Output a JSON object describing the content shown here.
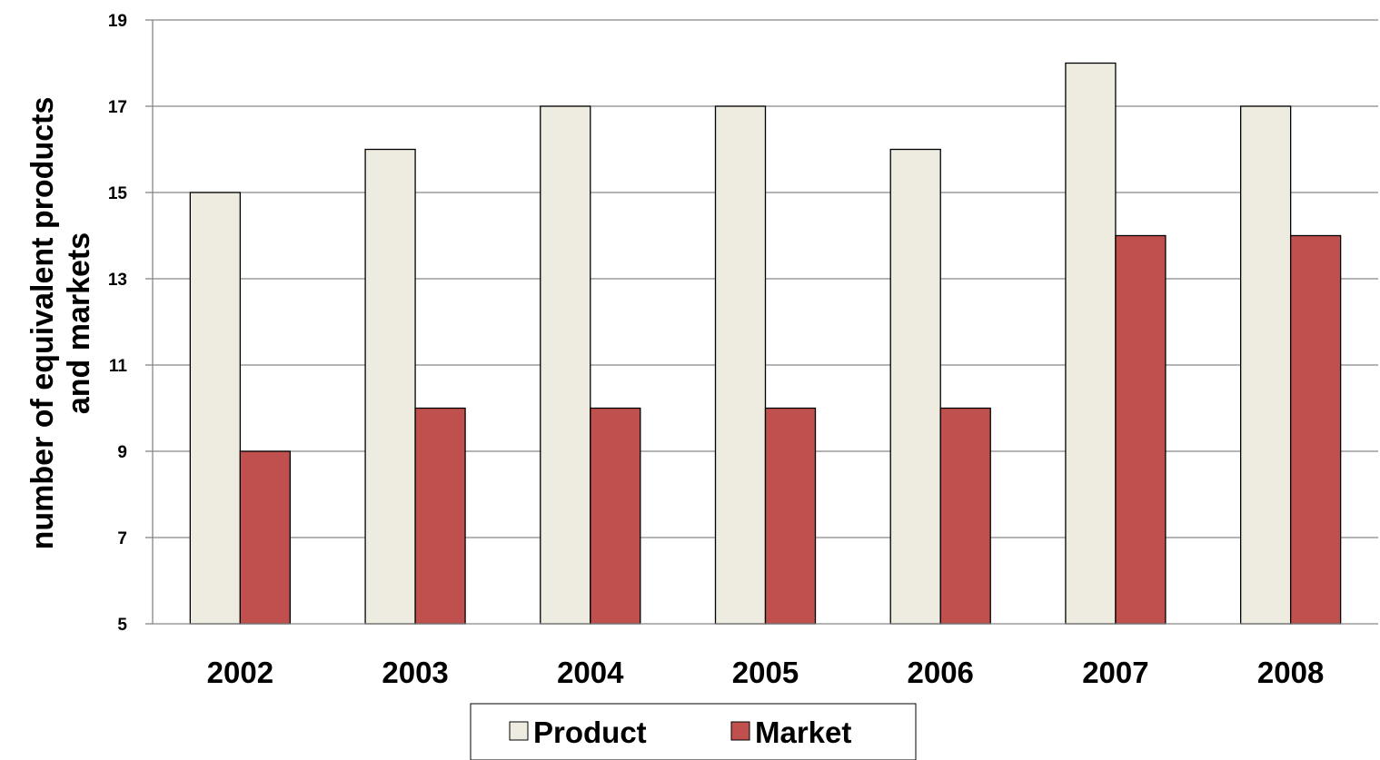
{
  "chart_data": {
    "type": "bar",
    "categories": [
      "2002",
      "2003",
      "2004",
      "2005",
      "2006",
      "2007",
      "2008"
    ],
    "series": [
      {
        "name": "Product",
        "values": [
          15,
          16,
          17,
          17,
          16,
          18,
          17
        ],
        "color": "#eeebe0"
      },
      {
        "name": "Market",
        "values": [
          9,
          10,
          10,
          10,
          10,
          14,
          14
        ],
        "color": "#c0504d"
      }
    ],
    "title": "",
    "xlabel": "",
    "ylabel_lines": [
      "number of equivalent products",
      "and markets"
    ],
    "ylim": [
      5,
      19
    ],
    "yticks": [
      "5",
      "7",
      "9",
      "11",
      "13",
      "15",
      "17",
      "19"
    ],
    "grid": true,
    "legend_position": "bottom"
  }
}
